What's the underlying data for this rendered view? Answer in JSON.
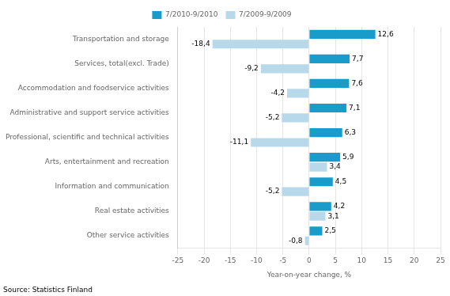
{
  "chart_data": {
    "type": "bar",
    "orientation": "horizontal",
    "categories": [
      "Transportation and storage",
      "Services, total(excl. Trade)",
      "Accommodation and foodservice activities",
      "Administrative and support service activities",
      "Professional, scientific and technical activities",
      "Arts, entertainment and recreation",
      "Information and communication",
      "Real estate activities",
      "Other service activities"
    ],
    "series": [
      {
        "name": "7/2010-9/2010",
        "color": "#1a9cca",
        "values": [
          12.6,
          7.7,
          7.6,
          7.1,
          6.3,
          5.9,
          4.5,
          4.2,
          2.5
        ],
        "value_labels": [
          "12,6",
          "7,7",
          "7,6",
          "7,1",
          "6,3",
          "5,9",
          "4,5",
          "4,2",
          "2,5"
        ]
      },
      {
        "name": "7/2009-9/2009",
        "color": "#b8d9ea",
        "values": [
          -18.4,
          -9.2,
          -4.2,
          -5.2,
          -11.1,
          3.4,
          -5.2,
          3.1,
          -0.8
        ],
        "value_labels": [
          "-18,4",
          "-9,2",
          "-4,2",
          "-5,2",
          "-11,1",
          "3,4",
          "-5,2",
          "3,1",
          "-0,8"
        ]
      }
    ],
    "xlabel": "Year-on-year change, %",
    "xlim": [
      -25,
      25
    ],
    "xticks": [
      -25,
      -20,
      -15,
      -10,
      -5,
      0,
      5,
      10,
      15,
      20,
      25
    ],
    "grid": true,
    "legend": "top",
    "data_labels": true,
    "annotations": [
      "Source: Statistics Finland"
    ]
  }
}
